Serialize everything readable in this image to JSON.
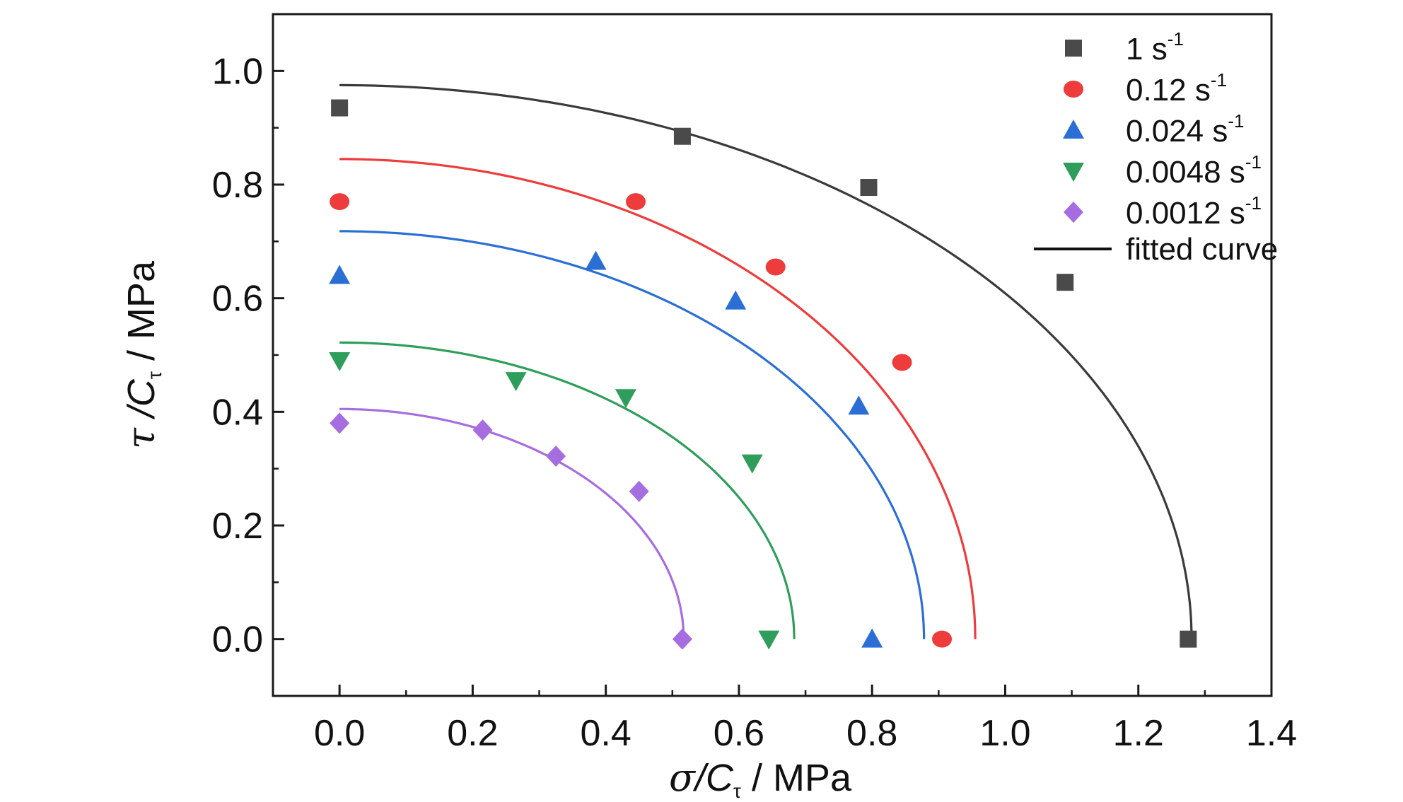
{
  "chart_data": {
    "type": "scatter",
    "xlabel": "σ/Cτ / MPa",
    "xlabel_parts": {
      "sym": "σ",
      "c": "/C",
      "sub": "τ",
      "unit": " / MPa"
    },
    "ylabel": "τ /Cτ / MPa",
    "ylabel_parts": {
      "sym": "τ",
      "c": " /C",
      "sub": "τ",
      "unit": " / MPa"
    },
    "xlim": [
      -0.1,
      1.4
    ],
    "ylim": [
      -0.1,
      1.1
    ],
    "xticks": [
      "0.0",
      "0.2",
      "0.4",
      "0.6",
      "0.8",
      "1.0",
      "1.2",
      "1.4"
    ],
    "yticks": [
      "0.0",
      "0.2",
      "0.4",
      "0.6",
      "0.8",
      "1.0"
    ],
    "grid": false,
    "legend_position": "top-right",
    "fitted_curve_label": "fitted curve",
    "series": [
      {
        "name": "1 s-1",
        "label_main": "1 s",
        "label_sup": "-1",
        "marker": "square",
        "color": "#4a4a4a",
        "curve_color": "#3a3a3a",
        "fit": {
          "a": 1.28,
          "b": 0.975
        },
        "points": [
          [
            0.0,
            0.935
          ],
          [
            0.515,
            0.885
          ],
          [
            0.795,
            0.795
          ],
          [
            1.09,
            0.628
          ],
          [
            1.275,
            0.0
          ]
        ]
      },
      {
        "name": "0.12 s-1",
        "label_main": "0.12 s",
        "label_sup": "-1",
        "marker": "circle",
        "color": "#ee3b3b",
        "curve_color": "#ee3b3b",
        "fit": {
          "a": 0.955,
          "b": 0.845
        },
        "points": [
          [
            0.0,
            0.77
          ],
          [
            0.445,
            0.77
          ],
          [
            0.655,
            0.655
          ],
          [
            0.845,
            0.487
          ],
          [
            0.905,
            0.0
          ]
        ]
      },
      {
        "name": "0.024 s-1",
        "label_main": "0.024 s",
        "label_sup": "-1",
        "marker": "triangle-up",
        "color": "#2b6fd6",
        "curve_color": "#2b6fd6",
        "fit": {
          "a": 0.878,
          "b": 0.718
        },
        "points": [
          [
            0.0,
            0.64
          ],
          [
            0.385,
            0.665
          ],
          [
            0.595,
            0.595
          ],
          [
            0.78,
            0.41
          ],
          [
            0.8,
            0.0
          ]
        ]
      },
      {
        "name": "0.0048 s-1",
        "label_main": "0.0048 s",
        "label_sup": "-1",
        "marker": "triangle-down",
        "color": "#2e9e5a",
        "curve_color": "#2e9e5a",
        "fit": {
          "a": 0.683,
          "b": 0.522
        },
        "points": [
          [
            0.0,
            0.49
          ],
          [
            0.265,
            0.455
          ],
          [
            0.43,
            0.425
          ],
          [
            0.62,
            0.31
          ],
          [
            0.645,
            0.0
          ]
        ]
      },
      {
        "name": "0.0012 s-1",
        "label_main": "0.0012 s",
        "label_sup": "-1",
        "marker": "diamond",
        "color": "#a66de0",
        "curve_color": "#a66de0",
        "fit": {
          "a": 0.517,
          "b": 0.405
        },
        "points": [
          [
            0.0,
            0.38
          ],
          [
            0.215,
            0.368
          ],
          [
            0.325,
            0.322
          ],
          [
            0.45,
            0.26
          ],
          [
            0.515,
            0.0
          ]
        ]
      }
    ]
  }
}
